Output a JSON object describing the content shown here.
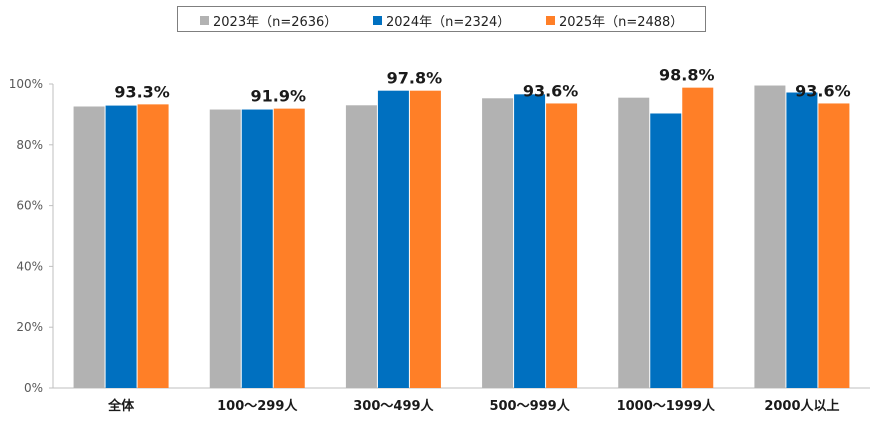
{
  "chart_data": {
    "type": "bar",
    "categories": [
      "全体",
      "100～299人",
      "300～499人",
      "500～999人",
      "1000～1999人",
      "2000人以上"
    ],
    "series": [
      {
        "name": "2023年（n=2636）",
        "color": "#b2b2b2",
        "values": [
          92.6,
          91.6,
          93.0,
          95.3,
          95.5,
          99.5
        ]
      },
      {
        "name": "2024年（n=2324）",
        "color": "#0070c0",
        "values": [
          92.9,
          91.6,
          97.8,
          96.6,
          90.3,
          97.2
        ]
      },
      {
        "name": "2025年（n=2488）",
        "color": "#ff7f27",
        "values": [
          93.3,
          91.9,
          97.8,
          93.6,
          98.8,
          93.6
        ]
      }
    ],
    "data_labels": [
      "93.3%",
      "91.9%",
      "97.8%",
      "93.6%",
      "98.8%",
      "93.6%"
    ],
    "yticks": [
      "0%",
      "20%",
      "40%",
      "60%",
      "80%",
      "100%"
    ],
    "ylim": [
      0,
      100
    ],
    "grid": false,
    "legend_position": "top-center"
  }
}
